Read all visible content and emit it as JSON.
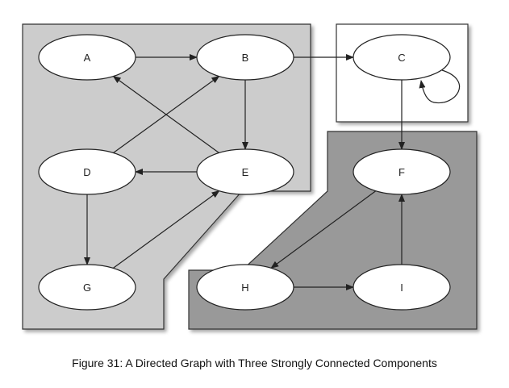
{
  "figure": {
    "caption": "Figure 31: A Directed Graph with Three Strongly Connected Components"
  },
  "components": [
    {
      "id": "scc1",
      "nodes": [
        "A",
        "B",
        "D",
        "E",
        "G"
      ],
      "fill": "#cccccc"
    },
    {
      "id": "scc2",
      "nodes": [
        "C"
      ],
      "fill": "#ffffff"
    },
    {
      "id": "scc3",
      "nodes": [
        "F",
        "H",
        "I"
      ],
      "fill": "#999999"
    }
  ],
  "nodes": [
    {
      "id": "A",
      "label": "A"
    },
    {
      "id": "B",
      "label": "B"
    },
    {
      "id": "C",
      "label": "C"
    },
    {
      "id": "D",
      "label": "D"
    },
    {
      "id": "E",
      "label": "E"
    },
    {
      "id": "F",
      "label": "F"
    },
    {
      "id": "G",
      "label": "G"
    },
    {
      "id": "H",
      "label": "H"
    },
    {
      "id": "I",
      "label": "I"
    }
  ],
  "edges": [
    {
      "from": "A",
      "to": "B"
    },
    {
      "from": "B",
      "to": "C"
    },
    {
      "from": "B",
      "to": "E"
    },
    {
      "from": "C",
      "to": "C"
    },
    {
      "from": "C",
      "to": "F"
    },
    {
      "from": "D",
      "to": "B"
    },
    {
      "from": "D",
      "to": "G"
    },
    {
      "from": "E",
      "to": "A"
    },
    {
      "from": "E",
      "to": "D"
    },
    {
      "from": "F",
      "to": "H"
    },
    {
      "from": "G",
      "to": "E"
    },
    {
      "from": "H",
      "to": "I"
    },
    {
      "from": "I",
      "to": "F"
    }
  ]
}
